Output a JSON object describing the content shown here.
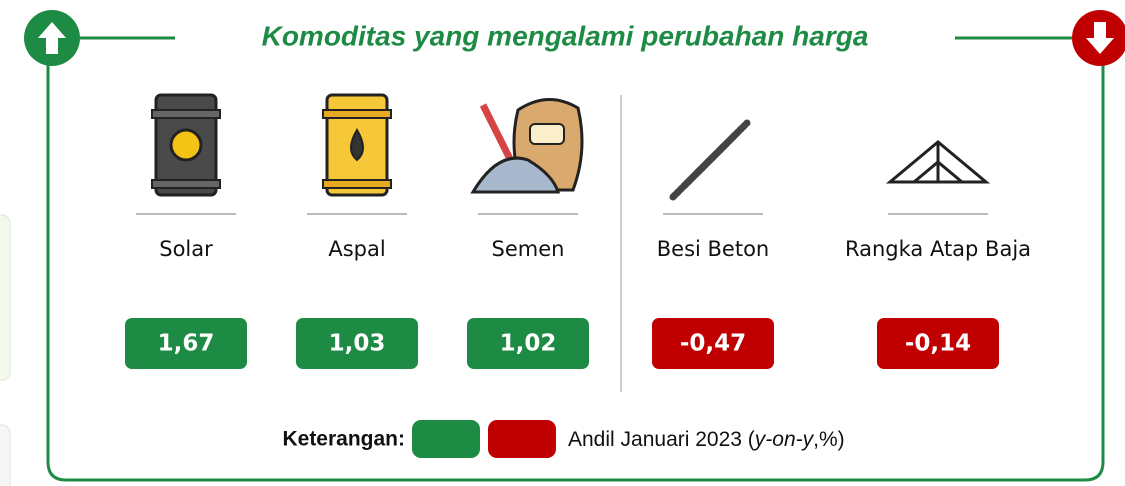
{
  "header": {
    "title": "Komoditas yang mengalami perubahan harga",
    "up_color": "#1e8b45",
    "down_color": "#c00000"
  },
  "items": [
    {
      "name": "Solar",
      "value": "1,67",
      "color": "#1e8b45",
      "icon": "barrel-dark"
    },
    {
      "name": "Aspal",
      "value": "1,03",
      "color": "#1e8b45",
      "icon": "barrel-yellow"
    },
    {
      "name": "Semen",
      "value": "1,02",
      "color": "#1e8b45",
      "icon": "cement"
    },
    {
      "name": "Besi Beton",
      "value": "-0,47",
      "color": "#c00000",
      "icon": "rebar"
    },
    {
      "name": "Rangka Atap Baja",
      "value": "-0,14",
      "color": "#c00000",
      "icon": "truss"
    }
  ],
  "legend": {
    "label": "Keterangan:",
    "colors": [
      "#1e8b45",
      "#c00000"
    ],
    "text": [
      "Andil Januari 2023 (",
      "y-on-y",
      ",%)"
    ]
  }
}
